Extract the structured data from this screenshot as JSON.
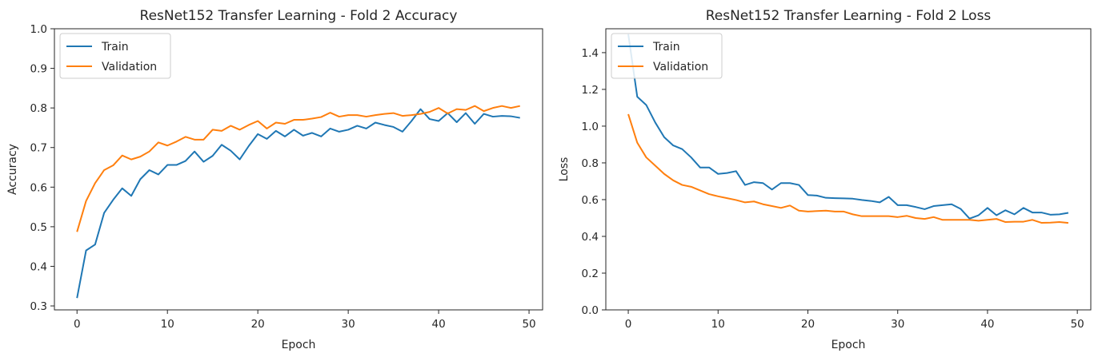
{
  "colors": {
    "train": "#1f77b4",
    "validation": "#ff7f0e",
    "axis": "#262626"
  },
  "chart_data": [
    {
      "type": "line",
      "title": "ResNet152 Transfer Learning - Fold 2 Accuracy",
      "xlabel": "Epoch",
      "ylabel": "Accuracy",
      "xlim": [
        -2.5,
        51.5
      ],
      "ylim": [
        0.29,
        1.0
      ],
      "xticks": [
        0,
        10,
        20,
        30,
        40,
        50
      ],
      "yticks": [
        0.3,
        0.4,
        0.5,
        0.6,
        0.7,
        0.8,
        0.9,
        1.0
      ],
      "ytick_labels": [
        "0.3",
        "0.4",
        "0.5",
        "0.6",
        "0.7",
        "0.8",
        "0.9",
        "1.0"
      ],
      "grid": false,
      "legend": "upper-left",
      "x": [
        0,
        1,
        2,
        3,
        4,
        5,
        6,
        7,
        8,
        9,
        10,
        11,
        12,
        13,
        14,
        15,
        16,
        17,
        18,
        19,
        20,
        21,
        22,
        23,
        24,
        25,
        26,
        27,
        28,
        29,
        30,
        31,
        32,
        33,
        34,
        35,
        36,
        37,
        38,
        39,
        40,
        41,
        42,
        43,
        44,
        45,
        46,
        47,
        48,
        49
      ],
      "series": [
        {
          "name": "Train",
          "color_key": "train",
          "values": [
            0.32,
            0.44,
            0.455,
            0.535,
            0.568,
            0.597,
            0.578,
            0.62,
            0.643,
            0.632,
            0.656,
            0.656,
            0.666,
            0.69,
            0.664,
            0.679,
            0.707,
            0.692,
            0.67,
            0.704,
            0.734,
            0.722,
            0.742,
            0.728,
            0.745,
            0.73,
            0.737,
            0.728,
            0.748,
            0.74,
            0.745,
            0.755,
            0.748,
            0.763,
            0.757,
            0.752,
            0.74,
            0.767,
            0.797,
            0.772,
            0.767,
            0.787,
            0.764,
            0.787,
            0.76,
            0.785,
            0.778,
            0.78,
            0.779,
            0.775
          ]
        },
        {
          "name": "Validation",
          "color_key": "validation",
          "values": [
            0.487,
            0.565,
            0.61,
            0.643,
            0.655,
            0.68,
            0.67,
            0.677,
            0.69,
            0.713,
            0.705,
            0.715,
            0.727,
            0.72,
            0.72,
            0.745,
            0.742,
            0.755,
            0.745,
            0.757,
            0.767,
            0.748,
            0.763,
            0.76,
            0.77,
            0.77,
            0.773,
            0.777,
            0.788,
            0.778,
            0.782,
            0.782,
            0.778,
            0.782,
            0.785,
            0.787,
            0.78,
            0.782,
            0.785,
            0.79,
            0.8,
            0.786,
            0.797,
            0.795,
            0.805,
            0.792,
            0.8,
            0.805,
            0.8,
            0.805
          ]
        }
      ]
    },
    {
      "type": "line",
      "title": "ResNet152 Transfer Learning - Fold 2 Loss",
      "xlabel": "Epoch",
      "ylabel": "Loss",
      "xlim": [
        -2.5,
        51.5
      ],
      "ylim": [
        0.0,
        1.53
      ],
      "xticks": [
        0,
        10,
        20,
        30,
        40,
        50
      ],
      "yticks": [
        0.0,
        0.2,
        0.4,
        0.6,
        0.8,
        1.0,
        1.2,
        1.4
      ],
      "ytick_labels": [
        "0.0",
        "0.2",
        "0.4",
        "0.6",
        "0.8",
        "1.0",
        "1.2",
        "1.4"
      ],
      "grid": false,
      "legend": "upper-left",
      "x": [
        0,
        1,
        2,
        3,
        4,
        5,
        6,
        7,
        8,
        9,
        10,
        11,
        12,
        13,
        14,
        15,
        16,
        17,
        18,
        19,
        20,
        21,
        22,
        23,
        24,
        25,
        26,
        27,
        28,
        29,
        30,
        31,
        32,
        33,
        34,
        35,
        36,
        37,
        38,
        39,
        40,
        41,
        42,
        43,
        44,
        45,
        46,
        47,
        48,
        49
      ],
      "series": [
        {
          "name": "Train",
          "color_key": "train",
          "values": [
            1.5,
            1.16,
            1.115,
            1.02,
            0.94,
            0.895,
            0.875,
            0.83,
            0.775,
            0.775,
            0.74,
            0.745,
            0.755,
            0.68,
            0.695,
            0.69,
            0.655,
            0.69,
            0.69,
            0.68,
            0.625,
            0.622,
            0.61,
            0.608,
            0.607,
            0.605,
            0.598,
            0.593,
            0.585,
            0.615,
            0.57,
            0.57,
            0.56,
            0.548,
            0.565,
            0.57,
            0.575,
            0.55,
            0.497,
            0.515,
            0.555,
            0.515,
            0.542,
            0.52,
            0.555,
            0.53,
            0.53,
            0.518,
            0.52,
            0.528
          ]
        },
        {
          "name": "Validation",
          "color_key": "validation",
          "values": [
            1.065,
            0.91,
            0.83,
            0.785,
            0.74,
            0.705,
            0.68,
            0.67,
            0.65,
            0.63,
            0.618,
            0.608,
            0.598,
            0.585,
            0.59,
            0.575,
            0.565,
            0.555,
            0.568,
            0.54,
            0.535,
            0.538,
            0.54,
            0.535,
            0.535,
            0.52,
            0.51,
            0.51,
            0.51,
            0.51,
            0.505,
            0.512,
            0.5,
            0.495,
            0.505,
            0.49,
            0.49,
            0.49,
            0.49,
            0.485,
            0.49,
            0.495,
            0.478,
            0.48,
            0.48,
            0.49,
            0.474,
            0.475,
            0.478,
            0.473
          ]
        }
      ]
    }
  ]
}
